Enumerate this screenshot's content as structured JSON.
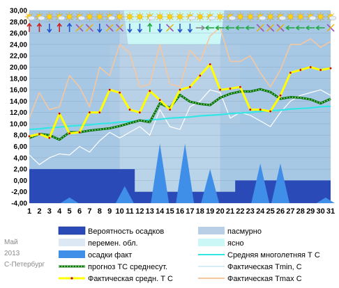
{
  "chart_data": {
    "type": "line",
    "title": "",
    "caption": {
      "month": "Май",
      "year": "2013",
      "city": "С-Петербург"
    },
    "x": [
      1,
      2,
      3,
      4,
      5,
      6,
      7,
      8,
      9,
      10,
      11,
      12,
      13,
      14,
      15,
      16,
      17,
      18,
      19,
      20,
      21,
      22,
      23,
      24,
      25,
      26,
      27,
      28,
      29,
      30,
      31
    ],
    "x_labels": [
      "1",
      "2",
      "3",
      "4",
      "5",
      "6",
      "7",
      "8",
      "9",
      "10",
      "11",
      "12",
      "13",
      "14",
      "15",
      "16",
      "17",
      "18",
      "19",
      "20",
      "21",
      "22",
      "23",
      "24",
      "25",
      "26",
      "27",
      "28",
      "29",
      "30",
      "31"
    ],
    "ylim": [
      -4,
      30
    ],
    "yticks": [
      -4,
      -2,
      0,
      2,
      4,
      6,
      8,
      10,
      12,
      14,
      16,
      18,
      20,
      22,
      24,
      26,
      28,
      30
    ],
    "ytick_labels": [
      "-4,00",
      "-2,00",
      "0,00",
      "2,00",
      "4,00",
      "6,00",
      "8,00",
      "10,00",
      "12,00",
      "14,00",
      "16,00",
      "18,00",
      "20,00",
      "22,00",
      "24,00",
      "26,00",
      "28,00",
      "30,00"
    ],
    "grid": true,
    "colors": {
      "plot_bg": "#a6c8e4",
      "overcast": "#b9cfe6",
      "variable": "#dce8f4",
      "clear": "#ccf7f7",
      "precip_prob": "#2a4ab8",
      "precip_fact": "#3f8ee8",
      "mean_normal": "#33e6e6",
      "forecast": "#0a6e0a",
      "forecast_dot": "#9cf58f",
      "tmin": "#ffffff",
      "tavg": "#ffff00",
      "tavg_marker": "#cc0000",
      "tmax": "#f5c7a0"
    },
    "series": [
      {
        "key": "tmax",
        "values": [
          11.0,
          15.5,
          12.5,
          13.0,
          18.5,
          16.5,
          13.0,
          20.0,
          18.5,
          24.0,
          22.5,
          16.5,
          17.0,
          24.0,
          17.0,
          16.5,
          23.0,
          21.0,
          25.5,
          27.0,
          21.0,
          21.0,
          22.0,
          19.0,
          16.5,
          19.5,
          24.0,
          24.0,
          25.0,
          23.5,
          24.5
        ]
      },
      {
        "key": "tmin",
        "values": [
          4.5,
          2.8,
          4.0,
          4.7,
          4.5,
          6.0,
          5.0,
          7.0,
          8.5,
          7.5,
          8.5,
          9.5,
          8.0,
          12.5,
          9.5,
          9.0,
          13.0,
          14.0,
          16.0,
          15.5,
          11.0,
          12.0,
          11.5,
          10.5,
          9.5,
          12.0,
          14.0,
          15.0,
          15.5,
          16.0,
          15.0
        ]
      },
      {
        "key": "mean_normal",
        "values": [
          9.0,
          9.1,
          9.3,
          9.4,
          9.6,
          9.7,
          9.8,
          10.0,
          10.1,
          10.3,
          10.4,
          10.5,
          10.7,
          10.8,
          11.0,
          11.1,
          11.2,
          11.4,
          11.5,
          11.6,
          11.8,
          11.9,
          12.0,
          12.2,
          12.3,
          12.4,
          12.6,
          12.7,
          12.8,
          13.0,
          13.1
        ]
      },
      {
        "key": "forecast",
        "values": [
          7.5,
          8.2,
          8.0,
          7.2,
          8.5,
          8.5,
          8.8,
          9.0,
          9.2,
          9.6,
          10.1,
          10.6,
          10.3,
          13.6,
          12.8,
          15.1,
          13.9,
          13.5,
          13.3,
          14.6,
          15.3,
          15.7,
          15.7,
          16.1,
          15.6,
          14.4,
          14.7,
          14.6,
          14.3,
          13.6,
          14.4
        ]
      },
      {
        "key": "tavg",
        "values": [
          7.8,
          8.2,
          7.5,
          11.8,
          8.3,
          8.5,
          12.0,
          12.0,
          16.0,
          15.5,
          12.5,
          12.0,
          15.8,
          14.2,
          12.5,
          16.0,
          16.5,
          18.5,
          20.5,
          16.0,
          16.2,
          16.5,
          12.5,
          12.5,
          12.2,
          15.0,
          19.0,
          19.5,
          20.0,
          19.5,
          19.8
        ]
      }
    ],
    "cloud_bands": [
      {
        "kind": "overcast",
        "x_range": [
          10,
          20
        ],
        "y_range": [
          10,
          30
        ]
      },
      {
        "kind": "variable",
        "x_range": [
          1,
          31
        ],
        "y_range": [
          -4,
          30
        ]
      }
    ],
    "clear_region": {
      "x_range": [
        10,
        20
      ],
      "y_range": [
        24,
        30
      ]
    },
    "precip_prob_values": [
      2,
      2,
      2,
      2,
      2,
      2,
      2,
      2,
      2,
      2,
      2,
      -2,
      -2,
      -2,
      -2,
      -2,
      -2,
      -2,
      -2,
      -2,
      -2,
      0,
      0,
      0,
      0,
      0,
      0,
      0,
      0,
      0,
      0
    ],
    "precip_fact_peaks": [
      {
        "day": 5,
        "value": -3.0
      },
      {
        "day": 10.5,
        "value": -1.0
      },
      {
        "day": 14,
        "value": 6.5
      },
      {
        "day": 16.5,
        "value": 6.5
      },
      {
        "day": 19,
        "value": 2.0
      },
      {
        "day": 24,
        "value": 3.0
      },
      {
        "day": 26,
        "value": 3.0
      },
      {
        "day": 30.5,
        "value": -3.0
      }
    ],
    "weather_icons": [
      "sun-cloud-icon",
      "sun-cloud-icon",
      "sun-icon",
      "sun-cloud-icon",
      "sun-icon",
      "sun-cloud-icon",
      "sun-icon",
      "sun-icon",
      "sun-cloud-icon",
      "sun-icon",
      "sun-icon",
      "sun-icon",
      "sun-cloud-icon",
      "sun-icon",
      "sun-icon",
      "sun-icon",
      "sun-cloud-icon",
      "sun-icon",
      "sun-cloud-icon",
      "sun-icon",
      "sun-cloud-icon",
      "sun-icon",
      "sun-icon",
      "sun-cloud-icon",
      "sun-icon",
      "sun-cloud-icon",
      "sun-icon",
      "sun-icon",
      "sun-cloud-icon",
      "sun-icon",
      "sun-cloud-icon"
    ],
    "wind_arrows": [
      "up",
      "up",
      "down",
      "up",
      "up",
      "x",
      "x",
      "down",
      "x",
      "x",
      "down",
      "down",
      "up",
      "down",
      "x",
      "down",
      "down",
      "right",
      "left",
      "left",
      "left",
      "left",
      "left",
      "x",
      "x",
      "x",
      "left",
      "left",
      "left",
      "left",
      "x"
    ],
    "wind_colors": [
      "#cc2222",
      "#cc2222",
      "#2255cc",
      "#cc2222",
      "#2255cc",
      "#9b59b6",
      "#9b59b6",
      "#2255cc",
      "#9b59b6",
      "#9b59b6",
      "#2255cc",
      "#2255cc",
      "#22aa44",
      "#2255cc",
      "#9b59b6",
      "#2255cc",
      "#2255cc",
      "#888888",
      "#22aa44",
      "#22aa44",
      "#22aa44",
      "#22aa44",
      "#22aa44",
      "#9b59b6",
      "#9b59b6",
      "#9b59b6",
      "#22aa44",
      "#22aa44",
      "#22aa44",
      "#22aa44",
      "#9b59b6"
    ],
    "legend": [
      {
        "key": "precip_prob",
        "label": "Вероятность осадков"
      },
      {
        "key": "overcast",
        "label": "пасмурно"
      },
      {
        "key": "variable",
        "label": "перемен. обл."
      },
      {
        "key": "clear",
        "label": "ясно"
      },
      {
        "key": "precip_fact",
        "label": "осадки факт"
      },
      {
        "key": "mean_normal",
        "label": "Средняя многолетняя Т С"
      },
      {
        "key": "forecast",
        "label": "прогноз ТС среднесут."
      },
      {
        "key": "tmin",
        "label": "Фактическая Tmin, C"
      },
      {
        "key": "tavg",
        "label": "Фактическая средн. Т С"
      },
      {
        "key": "tmax",
        "label": "Фактическая Tmax C"
      }
    ]
  }
}
